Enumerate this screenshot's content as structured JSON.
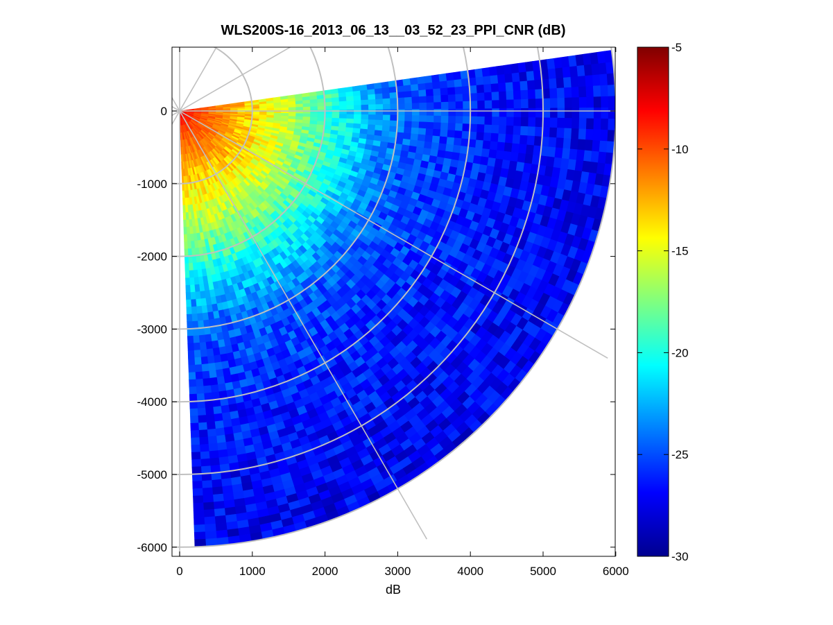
{
  "chart_data": {
    "type": "heatmap",
    "subtype": "polar-ppi-sector",
    "title": "WLS200S-16_2013_06_13__03_52_23_PPI_CNR (dB)",
    "xlabel": "dB",
    "ylabel": "",
    "xlim": [
      -100,
      6000
    ],
    "ylim": [
      -6100,
      850
    ],
    "x_ticks": [
      0,
      1000,
      2000,
      3000,
      4000,
      5000,
      6000
    ],
    "x_tick_labels": [
      "0",
      "1000",
      "2000",
      "3000",
      "4000",
      "5000",
      "6000"
    ],
    "y_ticks": [
      0,
      -1000,
      -2000,
      -3000,
      -4000,
      -5000,
      -6000
    ],
    "y_tick_labels": [
      "0",
      "-1000",
      "-2000",
      "-3000",
      "-4000",
      "-5000",
      "-6000"
    ],
    "sector_deg": [
      -88,
      8
    ],
    "range_max": 6000,
    "polar_grid": {
      "ranges": [
        1000,
        2000,
        3000,
        4000,
        5000,
        6000
      ],
      "angles_deg": [
        -60,
        -30,
        0,
        30,
        60
      ]
    },
    "colorbar": {
      "colormap": "jet",
      "clim": [
        -30,
        -5
      ],
      "ticks": [
        -5,
        -10,
        -15,
        -20,
        -25,
        -30
      ],
      "tick_labels": [
        "-5",
        "-10",
        "-15",
        "-20",
        "-25",
        "-30"
      ]
    },
    "cnr_profile": {
      "range": [
        0,
        200,
        500,
        1000,
        1500,
        2000,
        2500,
        3000,
        4000,
        5000,
        6000
      ],
      "cnr_db": [
        -8,
        -9.5,
        -11,
        -13.5,
        -16,
        -19,
        -22,
        -24.5,
        -26,
        -26.8,
        -27.2
      ]
    },
    "grid": false,
    "legend": "none"
  },
  "colors": {
    "grid": "#c0c0c0",
    "axis": "#000000",
    "background": "#ffffff"
  }
}
